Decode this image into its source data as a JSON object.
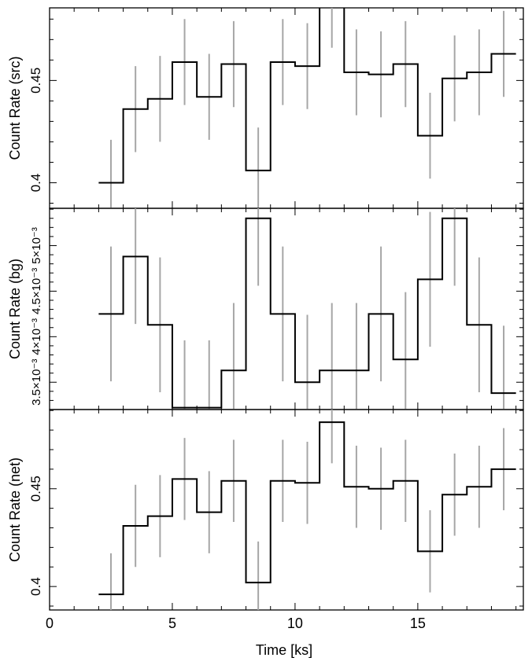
{
  "chart_data": {
    "type": "line",
    "xlabel": "Time [ks]",
    "xlim": [
      0,
      19.3
    ],
    "x_ticks": [
      0,
      5,
      10,
      15
    ],
    "bin_width": 1.0,
    "bin_centers": [
      2.5,
      3.5,
      4.5,
      5.5,
      6.5,
      7.5,
      8.5,
      9.5,
      10.5,
      11.5,
      12.5,
      13.5,
      14.5,
      15.5,
      16.5,
      17.5,
      18.5
    ],
    "panels": [
      {
        "id": "src",
        "ylabel": "Count Rate (src)",
        "ylim": [
          0.3875,
          0.4855
        ],
        "y_ticks": [
          0.4,
          0.45
        ],
        "y_tick_labels": [
          "0.4",
          "0.45"
        ],
        "values": [
          0.4,
          0.436,
          0.441,
          0.459,
          0.442,
          0.458,
          0.406,
          0.459,
          0.457,
          0.487,
          0.454,
          0.453,
          0.458,
          0.423,
          0.451,
          0.454,
          0.463
        ],
        "errors": [
          0.021,
          0.021,
          0.021,
          0.021,
          0.021,
          0.021,
          0.021,
          0.021,
          0.021,
          0.021,
          0.021,
          0.021,
          0.021,
          0.021,
          0.021,
          0.021,
          0.021
        ]
      },
      {
        "id": "bg",
        "ylabel": "Count Rate (bg)",
        "ylim": [
          0.0032,
          0.00541
        ],
        "y_ticks": [
          0.0035,
          0.004,
          0.0045,
          0.005
        ],
        "y_tick_labels": [
          "3.5×10⁻³",
          "4×10⁻³",
          "4.5×10⁻³",
          "5×10⁻³"
        ],
        "values": [
          0.00425,
          0.00488,
          0.00413,
          0.00322,
          0.00322,
          0.00363,
          0.0053,
          0.00425,
          0.0035,
          0.00363,
          0.00363,
          0.00425,
          0.00375,
          0.00463,
          0.0053,
          0.00413,
          0.00338
        ],
        "errors": [
          0.00074,
          0.00074,
          0.00074,
          0.00074,
          0.00074,
          0.00074,
          0.00074,
          0.00074,
          0.00074,
          0.00074,
          0.00074,
          0.00074,
          0.00074,
          0.00074,
          0.00074,
          0.00074,
          0.00074
        ]
      },
      {
        "id": "net",
        "ylabel": "Count Rate (net)",
        "ylim": [
          0.388,
          0.4905
        ],
        "y_ticks": [
          0.4,
          0.45
        ],
        "y_tick_labels": [
          "0.4",
          "0.45"
        ],
        "values": [
          0.396,
          0.431,
          0.436,
          0.455,
          0.438,
          0.454,
          0.402,
          0.454,
          0.453,
          0.484,
          0.451,
          0.45,
          0.454,
          0.418,
          0.447,
          0.451,
          0.46
        ],
        "errors": [
          0.021,
          0.021,
          0.021,
          0.021,
          0.021,
          0.021,
          0.021,
          0.021,
          0.021,
          0.021,
          0.021,
          0.021,
          0.021,
          0.021,
          0.021,
          0.021,
          0.021
        ]
      }
    ]
  }
}
